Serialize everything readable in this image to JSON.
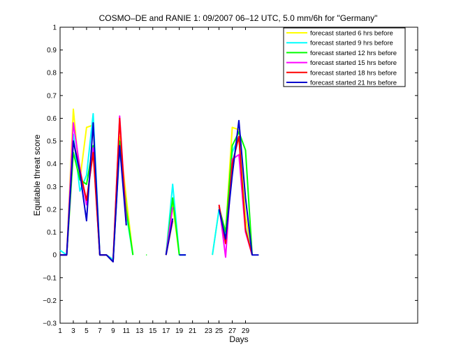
{
  "chart_data": {
    "type": "line",
    "title": "COSMO–DE and RANIE 1: 09/2007 06–12 UTC, 5.0 mm/6h for \"Germany\"",
    "xlabel": "Days",
    "ylabel": "Equitable threat score",
    "xlim": [
      1,
      55
    ],
    "ylim": [
      -0.3,
      1
    ],
    "x_ticks": [
      1,
      3,
      5,
      7,
      9,
      11,
      13,
      15,
      17,
      19,
      21,
      23,
      25,
      27,
      29
    ],
    "x_tick_labels": [
      "1",
      "3",
      "5",
      "7",
      "9",
      "11",
      "13",
      "15",
      "17",
      "19",
      "21",
      "23",
      "25",
      "27",
      "29"
    ],
    "x_tick_positions": [
      1,
      3,
      5,
      7,
      9,
      11,
      13,
      15,
      17,
      19,
      21,
      23.4,
      25,
      27,
      29
    ],
    "y_ticks": [
      -0.3,
      -0.2,
      -0.1,
      0,
      0.1,
      0.2,
      0.3,
      0.4,
      0.5,
      0.6,
      0.7,
      0.8,
      0.9,
      1
    ],
    "y_tick_labels": [
      "−0.3",
      "−0.2",
      "−0.1",
      "0",
      "0.1",
      "0.2",
      "0.3",
      "0.4",
      "0.5",
      "0.6",
      "0.7",
      "0.8",
      "0.9",
      "1"
    ],
    "legend_position": "top-right",
    "grid": false,
    "series": [
      {
        "name": "forecast started 6 hrs before",
        "color": "#ffff00",
        "segments": [
          [
            [
              1,
              0
            ],
            [
              2,
              0
            ],
            [
              3,
              0.64
            ],
            [
              4,
              0.33
            ],
            [
              5,
              0.56
            ],
            [
              6,
              0.57
            ],
            [
              7,
              0
            ],
            [
              8,
              0
            ],
            [
              9,
              -0.02
            ],
            [
              10,
              0.52
            ],
            [
              11,
              0.25
            ],
            [
              12,
              0
            ]
          ],
          [
            [
              17,
              0
            ],
            [
              18,
              0.22
            ],
            [
              19,
              0
            ]
          ],
          [
            [
              24,
              0
            ],
            [
              25,
              0.2
            ],
            [
              26,
              0.1
            ],
            [
              27,
              0.56
            ],
            [
              28,
              0.55
            ],
            [
              29,
              0.17
            ],
            [
              30,
              0
            ]
          ]
        ]
      },
      {
        "name": "forecast started 9 hrs before",
        "color": "#00ffff",
        "segments": [
          [
            [
              1,
              0.02
            ],
            [
              2,
              0
            ],
            [
              3,
              0.53
            ],
            [
              4,
              0.28
            ],
            [
              5,
              0.35
            ],
            [
              6,
              0.62
            ],
            [
              7,
              0
            ],
            [
              8,
              0
            ],
            [
              9,
              -0.02
            ],
            [
              10,
              0.47
            ],
            [
              11,
              0.18
            ],
            [
              12,
              0
            ]
          ],
          [
            [
              17,
              0
            ],
            [
              18,
              0.31
            ],
            [
              19,
              0
            ],
            [
              20,
              0
            ]
          ],
          [
            [
              24,
              0
            ],
            [
              25,
              0.2
            ],
            [
              26,
              0.08
            ],
            [
              27,
              0.45
            ],
            [
              28,
              0.52
            ],
            [
              29,
              0.12
            ],
            [
              30,
              0
            ]
          ]
        ]
      },
      {
        "name": "forecast started 12 hrs before",
        "color": "#00ff00",
        "segments": [
          [
            [
              1,
              0
            ],
            [
              2,
              0
            ],
            [
              3,
              0.45
            ],
            [
              4,
              0.33
            ],
            [
              5,
              0.31
            ],
            [
              6,
              0.48
            ],
            [
              7,
              0
            ],
            [
              8,
              0
            ],
            [
              9,
              -0.03
            ],
            [
              10,
              0.5
            ],
            [
              11,
              0.2
            ],
            [
              12,
              0
            ]
          ],
          [
            [
              14,
              0
            ],
            [
              14.1,
              0
            ]
          ],
          [
            [
              17,
              0
            ],
            [
              18,
              0.25
            ],
            [
              19,
              0
            ]
          ],
          [
            [
              25,
              0.21
            ],
            [
              26,
              0.1
            ],
            [
              27,
              0.48
            ],
            [
              28,
              0.54
            ],
            [
              29,
              0.46
            ],
            [
              30,
              0
            ]
          ]
        ]
      },
      {
        "name": "forecast started 15 hrs before",
        "color": "#ff00ff",
        "segments": [
          [
            [
              1,
              0
            ],
            [
              2,
              0
            ],
            [
              3,
              0.58
            ],
            [
              4,
              0.38
            ],
            [
              5,
              0.22
            ],
            [
              6,
              0.47
            ],
            [
              7,
              0
            ],
            [
              8,
              0
            ],
            [
              9,
              -0.03
            ],
            [
              10,
              0.61
            ],
            [
              11,
              0.15
            ]
          ],
          [
            [
              17,
              0
            ],
            [
              18,
              0.21
            ]
          ],
          [
            [
              25,
              0.22
            ],
            [
              26,
              -0.01
            ],
            [
              27,
              0.42
            ],
            [
              28,
              0.44
            ],
            [
              29,
              0.1
            ],
            [
              30,
              0
            ]
          ]
        ]
      },
      {
        "name": "forecast started 18 hrs before",
        "color": "#ff0000",
        "segments": [
          [
            [
              1,
              0
            ],
            [
              2,
              0
            ],
            [
              3,
              0.5
            ],
            [
              4,
              0.37
            ],
            [
              5,
              0.24
            ],
            [
              6,
              0.45
            ],
            [
              7,
              0
            ],
            [
              8,
              0
            ],
            [
              9,
              -0.03
            ],
            [
              10,
              0.6
            ],
            [
              11,
              0.13
            ]
          ],
          [
            [
              17,
              0
            ],
            [
              18,
              0.15
            ]
          ],
          [
            [
              25,
              0.22
            ],
            [
              26,
              0.05
            ],
            [
              27,
              0.4
            ],
            [
              28,
              0.52
            ],
            [
              29,
              0.11
            ],
            [
              30,
              0
            ]
          ]
        ]
      },
      {
        "name": "forecast started 21 hrs before",
        "color": "#0000cc",
        "segments": [
          [
            [
              1,
              0
            ],
            [
              2,
              0
            ],
            [
              3,
              0.5
            ],
            [
              4,
              0.36
            ],
            [
              5,
              0.15
            ],
            [
              6,
              0.58
            ],
            [
              7,
              0
            ],
            [
              8,
              0
            ],
            [
              9,
              -0.03
            ],
            [
              10,
              0.48
            ],
            [
              11,
              0.13
            ]
          ],
          [
            [
              17,
              0
            ],
            [
              18,
              0.16
            ]
          ],
          [
            [
              19,
              0
            ],
            [
              20,
              0
            ]
          ],
          [
            [
              25,
              0.2
            ],
            [
              26,
              0.07
            ],
            [
              27,
              0.35
            ],
            [
              28,
              0.59
            ],
            [
              29,
              0.25
            ],
            [
              30,
              0
            ],
            [
              31,
              0
            ]
          ]
        ]
      }
    ]
  }
}
